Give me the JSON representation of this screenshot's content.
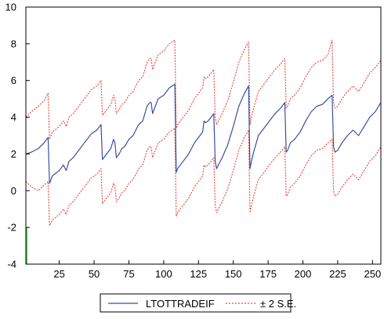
{
  "chart_data": {
    "type": "line",
    "title": "",
    "xlabel": "",
    "ylabel": "",
    "xlim": [
      1,
      256
    ],
    "ylim": [
      -4,
      10
    ],
    "yticks": [
      -4,
      -2,
      0,
      2,
      4,
      6,
      8,
      10
    ],
    "xticks": [
      25,
      50,
      75,
      100,
      125,
      150,
      175,
      200,
      225,
      250
    ],
    "grid": false,
    "legend_position": "bottom-center",
    "colors": {
      "forecast": "#3a4fa0",
      "band": "#e8453a",
      "axis": "#000000",
      "marker": "#2e9a2e"
    },
    "series": [
      {
        "name": "LTOTTRADEIF",
        "style": "solid",
        "x": [
          1,
          5,
          10,
          14,
          17,
          18,
          20,
          25,
          28,
          30,
          32,
          35,
          38,
          42,
          45,
          48,
          52,
          55,
          56,
          57,
          60,
          62,
          64,
          65,
          66,
          68,
          70,
          72,
          75,
          78,
          82,
          85,
          88,
          90,
          91,
          92,
          94,
          96,
          100,
          104,
          108,
          109,
          110,
          114,
          118,
          122,
          126,
          128,
          129,
          130,
          132,
          134,
          136,
          137,
          138,
          140,
          142,
          146,
          150,
          154,
          158,
          161,
          162,
          163,
          165,
          168,
          172,
          176,
          180,
          184,
          187,
          188,
          189,
          191,
          194,
          198,
          202,
          206,
          210,
          214,
          218,
          221,
          222,
          223,
          225,
          228,
          232,
          236,
          240,
          244,
          248,
          252,
          256
        ],
        "values": [
          2.0,
          2.1,
          2.3,
          2.6,
          2.9,
          0.4,
          0.8,
          1.1,
          1.4,
          1.1,
          1.6,
          1.8,
          2.1,
          2.5,
          2.8,
          3.1,
          3.3,
          3.6,
          1.7,
          1.8,
          2.1,
          2.3,
          2.8,
          2.6,
          1.8,
          2.0,
          2.3,
          2.4,
          2.8,
          3.0,
          3.6,
          3.8,
          4.6,
          4.8,
          4.8,
          4.2,
          4.6,
          5.0,
          5.2,
          5.6,
          5.8,
          1.0,
          1.2,
          1.6,
          2.0,
          2.6,
          3.0,
          3.2,
          3.8,
          3.7,
          3.8,
          4.0,
          4.2,
          1.6,
          1.2,
          1.5,
          1.8,
          2.5,
          3.5,
          4.6,
          5.3,
          5.7,
          1.2,
          1.6,
          2.2,
          3.0,
          3.4,
          3.8,
          4.2,
          4.5,
          4.8,
          2.1,
          2.2,
          2.6,
          2.8,
          3.2,
          3.8,
          4.3,
          4.6,
          4.7,
          5.0,
          5.2,
          2.4,
          2.1,
          2.2,
          2.6,
          3.0,
          3.3,
          3.0,
          3.5,
          4.0,
          4.3,
          4.8
        ]
      },
      {
        "name": "± 2 S.E.",
        "style": "dashed",
        "x": [
          1,
          5,
          10,
          14,
          17,
          18,
          20,
          25,
          28,
          30,
          32,
          35,
          38,
          42,
          45,
          48,
          52,
          55,
          56,
          57,
          60,
          62,
          64,
          65,
          66,
          68,
          70,
          72,
          75,
          78,
          82,
          85,
          88,
          90,
          91,
          92,
          94,
          96,
          100,
          104,
          108,
          109,
          110,
          114,
          118,
          122,
          126,
          128,
          129,
          130,
          132,
          134,
          136,
          137,
          138,
          140,
          142,
          146,
          150,
          154,
          158,
          161,
          162,
          163,
          165,
          168,
          172,
          176,
          180,
          184,
          187,
          188,
          189,
          191,
          194,
          198,
          202,
          206,
          210,
          214,
          218,
          221,
          222,
          223,
          225,
          228,
          232,
          236,
          240,
          244,
          248,
          252,
          256
        ],
        "values": [
          4.0,
          4.3,
          4.6,
          4.9,
          5.3,
          2.8,
          3.2,
          3.5,
          3.8,
          3.5,
          4.0,
          4.2,
          4.5,
          4.9,
          5.2,
          5.5,
          5.7,
          6.0,
          4.1,
          4.2,
          4.5,
          4.7,
          5.2,
          5.0,
          4.2,
          4.4,
          4.7,
          4.8,
          5.2,
          5.4,
          6.0,
          6.2,
          7.0,
          7.2,
          7.2,
          6.6,
          7.0,
          7.4,
          7.6,
          8.0,
          8.2,
          3.4,
          3.6,
          4.0,
          4.4,
          5.0,
          5.4,
          5.6,
          6.2,
          6.1,
          6.2,
          6.4,
          6.6,
          4.0,
          3.6,
          3.9,
          4.2,
          4.9,
          5.9,
          7.0,
          7.7,
          8.1,
          3.6,
          4.0,
          4.6,
          5.4,
          5.8,
          6.2,
          6.6,
          6.9,
          7.2,
          4.5,
          4.6,
          5.0,
          5.2,
          5.6,
          6.2,
          6.7,
          7.0,
          7.1,
          7.4,
          8.2,
          4.8,
          4.5,
          4.6,
          5.0,
          5.4,
          5.7,
          5.4,
          5.9,
          6.4,
          6.7,
          7.1
        ]
      },
      {
        "name": "",
        "style": "dashed",
        "x": [
          1,
          5,
          10,
          14,
          17,
          18,
          20,
          25,
          28,
          30,
          32,
          35,
          38,
          42,
          45,
          48,
          52,
          55,
          56,
          57,
          60,
          62,
          64,
          65,
          66,
          68,
          70,
          72,
          75,
          78,
          82,
          85,
          88,
          90,
          91,
          92,
          94,
          96,
          100,
          104,
          108,
          109,
          110,
          114,
          118,
          122,
          126,
          128,
          129,
          130,
          132,
          134,
          136,
          137,
          138,
          140,
          142,
          146,
          150,
          154,
          158,
          161,
          162,
          163,
          165,
          168,
          172,
          176,
          180,
          184,
          187,
          188,
          189,
          191,
          194,
          198,
          202,
          206,
          210,
          214,
          218,
          221,
          222,
          223,
          225,
          228,
          232,
          236,
          240,
          244,
          248,
          252,
          256
        ],
        "values": [
          0.5,
          0.2,
          0.0,
          0.3,
          0.5,
          -1.9,
          -1.6,
          -1.3,
          -1.0,
          -1.3,
          -0.8,
          -0.6,
          -0.3,
          0.1,
          0.4,
          0.7,
          0.9,
          1.2,
          -0.7,
          -0.6,
          -0.3,
          -0.1,
          0.4,
          0.2,
          -0.6,
          -0.4,
          -0.1,
          0.0,
          0.4,
          0.6,
          1.2,
          1.4,
          2.2,
          2.4,
          2.4,
          1.8,
          2.2,
          2.6,
          2.8,
          3.2,
          3.4,
          -1.4,
          -1.2,
          -0.8,
          -0.4,
          0.2,
          0.6,
          0.8,
          1.4,
          1.3,
          1.4,
          1.6,
          1.8,
          -0.8,
          -1.2,
          -0.9,
          -0.6,
          0.1,
          1.1,
          2.2,
          2.9,
          3.3,
          -1.2,
          -0.8,
          -0.2,
          0.6,
          1.0,
          1.4,
          1.8,
          2.1,
          2.4,
          -0.3,
          -0.2,
          0.2,
          0.4,
          0.8,
          1.4,
          1.9,
          2.2,
          2.3,
          2.6,
          2.8,
          0.0,
          -0.3,
          -0.2,
          0.2,
          0.6,
          0.9,
          0.6,
          1.1,
          1.6,
          1.9,
          2.4
        ]
      }
    ]
  }
}
